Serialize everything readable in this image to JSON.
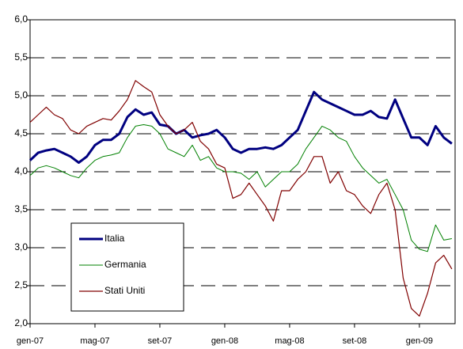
{
  "chart_data": {
    "type": "line",
    "x": [
      0,
      0.5,
      1,
      1.5,
      2,
      2.5,
      3,
      3.5,
      4,
      4.5,
      5,
      5.5,
      6,
      6.5,
      7,
      7.5,
      8,
      8.5,
      9,
      9.5,
      10,
      10.5,
      11,
      11.5,
      12,
      12.5,
      13,
      13.5,
      14,
      14.5,
      15,
      15.5,
      16,
      16.5,
      17,
      17.5,
      18,
      18.5,
      19,
      19.5,
      20,
      20.5,
      21,
      21.5,
      22,
      22.5,
      23,
      23.5,
      24,
      24.5,
      25,
      25.5,
      26
    ],
    "xlim": [
      0,
      26.2
    ],
    "xticks": [
      {
        "value": 0,
        "label": "gen-07"
      },
      {
        "value": 4,
        "label": "mag-07"
      },
      {
        "value": 8,
        "label": "set-07"
      },
      {
        "value": 12,
        "label": "gen-08"
      },
      {
        "value": 16,
        "label": "mag-08"
      },
      {
        "value": 20,
        "label": "set-08"
      },
      {
        "value": 24,
        "label": "gen-09"
      }
    ],
    "ylim": [
      2,
      6
    ],
    "yticks": [
      {
        "value": 2,
        "label": "2,0"
      },
      {
        "value": 2.5,
        "label": "2,5"
      },
      {
        "value": 3,
        "label": "3,0"
      },
      {
        "value": 3.5,
        "label": "3,5"
      },
      {
        "value": 4,
        "label": "4,0"
      },
      {
        "value": 4.5,
        "label": "4,5"
      },
      {
        "value": 5,
        "label": "5,0"
      },
      {
        "value": 5.5,
        "label": "5,5"
      },
      {
        "value": 6,
        "label": "6,0"
      }
    ],
    "grid": true,
    "series": [
      {
        "name": "Italia",
        "color": "#000080",
        "values": [
          4.15,
          4.25,
          4.28,
          4.3,
          4.25,
          4.2,
          4.12,
          4.2,
          4.35,
          4.42,
          4.42,
          4.5,
          4.72,
          4.82,
          4.75,
          4.78,
          4.62,
          4.6,
          4.5,
          4.55,
          4.45,
          4.48,
          4.5,
          4.55,
          4.45,
          4.3,
          4.25,
          4.3,
          4.3,
          4.32,
          4.3,
          4.35,
          4.45,
          4.55,
          4.8,
          5.05,
          4.95,
          4.9,
          4.85,
          4.8,
          4.75,
          4.75,
          4.8,
          4.72,
          4.7,
          4.95,
          4.7,
          4.45,
          4.45,
          4.35,
          4.6,
          4.45,
          4.37
        ]
      },
      {
        "name": "Germania",
        "color": "#008000",
        "values": [
          3.95,
          4.05,
          4.08,
          4.05,
          4.0,
          3.95,
          3.92,
          4.05,
          4.15,
          4.2,
          4.22,
          4.25,
          4.45,
          4.6,
          4.62,
          4.6,
          4.5,
          4.3,
          4.25,
          4.2,
          4.35,
          4.15,
          4.2,
          4.05,
          4.0,
          4.0,
          3.98,
          3.9,
          4.0,
          3.8,
          3.9,
          4.0,
          4.0,
          4.1,
          4.3,
          4.45,
          4.6,
          4.55,
          4.45,
          4.4,
          4.2,
          4.05,
          3.95,
          3.85,
          3.9,
          3.7,
          3.5,
          3.1,
          2.98,
          2.95,
          3.3,
          3.1,
          3.12
        ]
      },
      {
        "name": "Stati Uniti",
        "color": "#800000",
        "values": [
          4.65,
          4.75,
          4.85,
          4.75,
          4.7,
          4.55,
          4.5,
          4.6,
          4.65,
          4.7,
          4.68,
          4.8,
          4.95,
          5.2,
          5.12,
          5.05,
          4.75,
          4.6,
          4.5,
          4.55,
          4.65,
          4.4,
          4.3,
          4.1,
          4.05,
          3.65,
          3.7,
          3.85,
          3.7,
          3.55,
          3.35,
          3.75,
          3.75,
          3.9,
          4.0,
          4.2,
          4.2,
          3.85,
          4.0,
          3.75,
          3.7,
          3.55,
          3.45,
          3.7,
          3.85,
          3.5,
          2.6,
          2.2,
          2.1,
          2.4,
          2.8,
          2.9,
          2.72
        ]
      }
    ]
  }
}
